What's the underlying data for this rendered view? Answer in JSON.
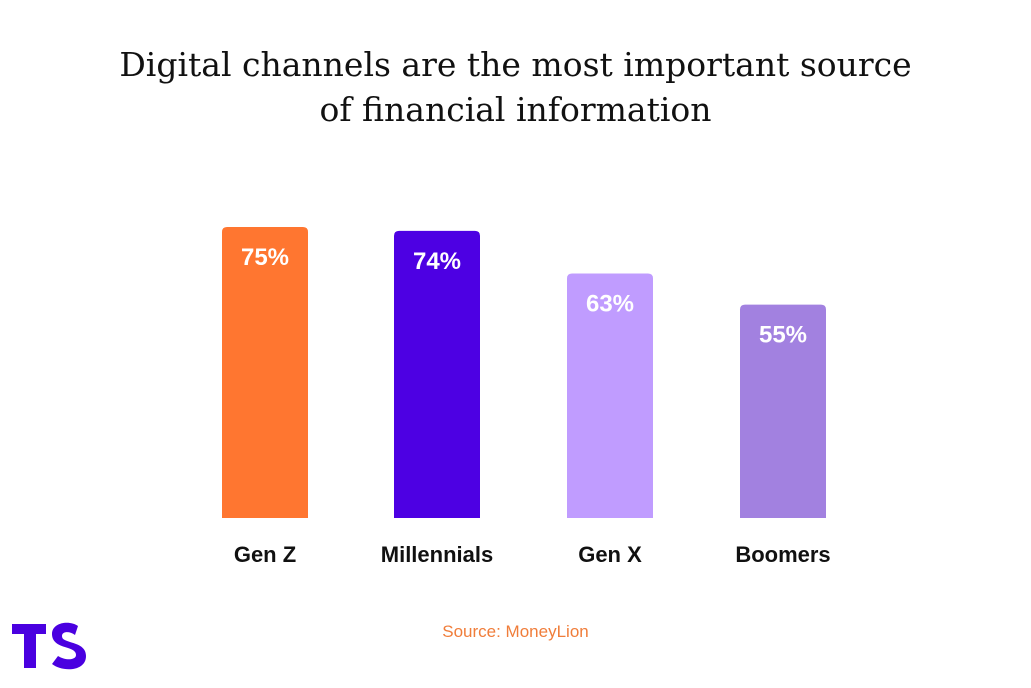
{
  "title_lines": [
    "Digital channels are the most important source",
    "of financial information"
  ],
  "source": "Source: MoneyLion",
  "logo": {
    "text": "TS",
    "color": "#4a00e0"
  },
  "chart_data": {
    "type": "bar",
    "title": "Digital channels are the most important source of financial information",
    "categories": [
      "Gen Z",
      "Millennials",
      "Gen X",
      "Boomers"
    ],
    "values": [
      75,
      74,
      63,
      55
    ],
    "data_labels": [
      "75%",
      "74%",
      "63%",
      "55%"
    ],
    "colors": [
      "#ff7630",
      "#4d00e3",
      "#c09cff",
      "#a281e0"
    ],
    "ylim": [
      0,
      75
    ],
    "grid": false,
    "legend": "none",
    "xlabel": "",
    "ylabel": ""
  }
}
